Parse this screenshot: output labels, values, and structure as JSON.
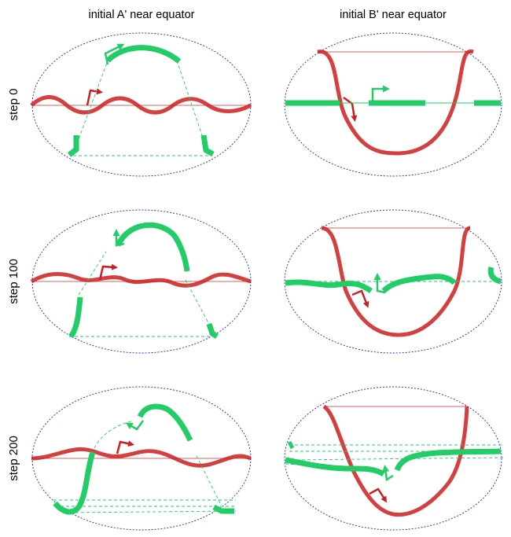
{
  "column_titles": [
    "initial A' near equator",
    "initial B' near equator"
  ],
  "row_titles": [
    "step 0",
    "step 100",
    "step 200"
  ],
  "colors": {
    "red": "#cc1f1f",
    "red_thin": "#d96060",
    "green": "#22cc66",
    "green_thin": "#22cc66",
    "boundary": "#2222cc"
  }
}
